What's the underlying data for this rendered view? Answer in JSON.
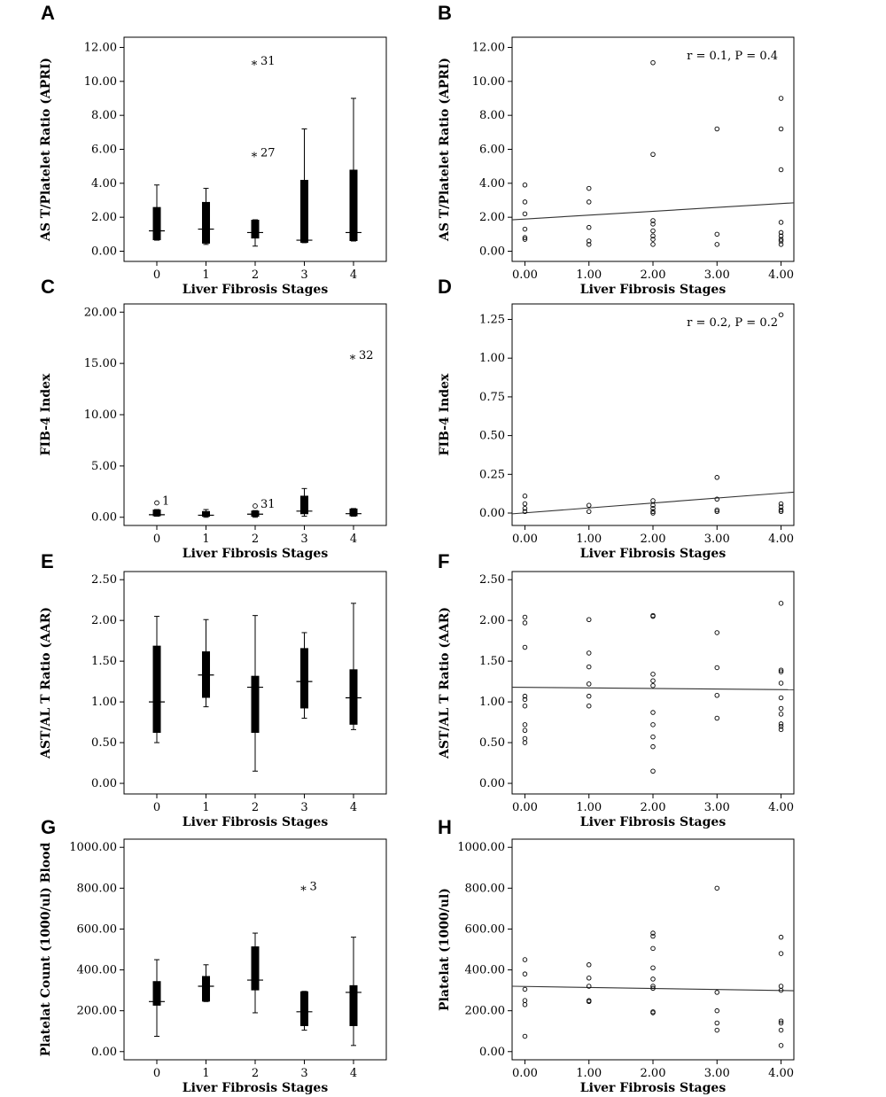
{
  "chart_data": [
    {
      "panel": "A",
      "type": "box",
      "ylabel": "AS T/Platelet Ratio (APRI)",
      "xlabel": "Liver Fibrosis Stages",
      "categories": [
        "0",
        "1",
        "2",
        "3",
        "4"
      ],
      "yticks": [
        "0.00",
        "2.00",
        "4.00",
        "6.00",
        "8.00",
        "10.00",
        "12.00"
      ],
      "ylim": [
        -0.6,
        12.6
      ],
      "boxes": [
        {
          "min": 0.65,
          "q1": 0.65,
          "median": 1.2,
          "q3": 2.6,
          "max": 3.9
        },
        {
          "min": 0.4,
          "q1": 0.45,
          "median": 1.3,
          "q3": 2.9,
          "max": 3.7
        },
        {
          "min": 0.3,
          "q1": 0.75,
          "median": 1.1,
          "q3": 1.85,
          "max": 1.85
        },
        {
          "min": 0.5,
          "q1": 0.5,
          "median": 0.65,
          "q3": 4.2,
          "max": 7.2
        },
        {
          "min": 0.6,
          "q1": 0.6,
          "median": 1.1,
          "q3": 4.8,
          "max": 9.0
        }
      ],
      "outliers": [
        {
          "cat": 2,
          "y": 11.1,
          "marker": "*",
          "label": "31"
        },
        {
          "cat": 2,
          "y": 5.7,
          "marker": "*",
          "label": "27"
        }
      ]
    },
    {
      "panel": "B",
      "type": "scatter",
      "ylabel": "AS T/Platelet Ratio (APRI)",
      "xlabel": "Liver Fibrosis Stages",
      "xticks": [
        "0.00",
        "1.00",
        "2.00",
        "3.00",
        "4.00"
      ],
      "yticks": [
        "0.00",
        "2.00",
        "4.00",
        "6.00",
        "8.00",
        "10.00",
        "12.00"
      ],
      "xlim": [
        -0.2,
        4.2
      ],
      "ylim": [
        -0.6,
        12.6
      ],
      "annotation": "r = 0.1, P = 0.4",
      "points": [
        [
          0,
          3.9
        ],
        [
          0,
          2.9
        ],
        [
          0,
          2.2
        ],
        [
          0,
          1.3
        ],
        [
          0,
          0.8
        ],
        [
          0,
          0.7
        ],
        [
          1,
          3.7
        ],
        [
          1,
          2.9
        ],
        [
          1,
          1.4
        ],
        [
          1,
          0.6
        ],
        [
          1,
          0.4
        ],
        [
          2,
          11.1
        ],
        [
          2,
          5.7
        ],
        [
          2,
          1.8
        ],
        [
          2,
          1.6
        ],
        [
          2,
          1.2
        ],
        [
          2,
          0.9
        ],
        [
          2,
          0.7
        ],
        [
          2,
          0.4
        ],
        [
          3,
          7.2
        ],
        [
          3,
          1.0
        ],
        [
          3,
          0.4
        ],
        [
          4,
          9.0
        ],
        [
          4,
          7.2
        ],
        [
          4,
          4.8
        ],
        [
          4,
          1.7
        ],
        [
          4,
          1.1
        ],
        [
          4,
          0.9
        ],
        [
          4,
          0.7
        ],
        [
          4,
          0.6
        ],
        [
          4,
          0.4
        ]
      ],
      "fit": {
        "x": [
          -0.2,
          4.2
        ],
        "y": [
          1.85,
          2.85
        ]
      }
    },
    {
      "panel": "C",
      "type": "box",
      "ylabel": "FIB-4 Index",
      "xlabel": "Liver Fibrosis Stages",
      "categories": [
        "0",
        "1",
        "2",
        "3",
        "4"
      ],
      "yticks": [
        "0.00",
        "5.00",
        "10.00",
        "15.00",
        "20.00"
      ],
      "ylim": [
        -0.8,
        20.8
      ],
      "boxes": [
        {
          "min": 0.1,
          "q1": 0.1,
          "median": 0.25,
          "q3": 0.75,
          "max": 0.75
        },
        {
          "min": 0.0,
          "q1": 0.05,
          "median": 0.2,
          "q3": 0.6,
          "max": 0.75
        },
        {
          "min": 0.0,
          "q1": 0.05,
          "median": 0.3,
          "q3": 0.65,
          "max": 0.65
        },
        {
          "min": 0.1,
          "q1": 0.3,
          "median": 0.6,
          "q3": 2.1,
          "max": 2.8
        },
        {
          "min": 0.1,
          "q1": 0.1,
          "median": 0.35,
          "q3": 0.85,
          "max": 0.85
        }
      ],
      "outliers": [
        {
          "cat": 0,
          "y": 1.4,
          "marker": "o",
          "label": "1"
        },
        {
          "cat": 2,
          "y": 1.1,
          "marker": "o",
          "label": "31"
        },
        {
          "cat": 4,
          "y": 15.6,
          "marker": "*",
          "label": "32"
        }
      ]
    },
    {
      "panel": "D",
      "type": "scatter",
      "ylabel": "FIB-4 Index",
      "xlabel": "Liver Fibrosis Stages",
      "xticks": [
        "0.00",
        "1.00",
        "2.00",
        "3.00",
        "4.00"
      ],
      "yticks": [
        "0.00",
        "0.25",
        "0.50",
        "0.75",
        "1.00",
        "1.25"
      ],
      "xlim": [
        -0.2,
        4.2
      ],
      "ylim": [
        -0.08,
        1.35
      ],
      "annotation": "r = 0.2, P = 0.2",
      "points": [
        [
          0,
          0.11
        ],
        [
          0,
          0.06
        ],
        [
          0,
          0.03
        ],
        [
          0,
          0.01
        ],
        [
          1,
          0.05
        ],
        [
          1,
          0.01
        ],
        [
          2,
          0.08
        ],
        [
          2,
          0.05
        ],
        [
          2,
          0.03
        ],
        [
          2,
          0.01
        ],
        [
          2,
          0.0
        ],
        [
          3,
          0.23
        ],
        [
          3,
          0.09
        ],
        [
          3,
          0.02
        ],
        [
          3,
          0.01
        ],
        [
          4,
          1.28
        ],
        [
          4,
          0.06
        ],
        [
          4,
          0.04
        ],
        [
          4,
          0.02
        ],
        [
          4,
          0.01
        ]
      ],
      "fit": {
        "x": [
          -0.2,
          4.2
        ],
        "y": [
          -0.005,
          0.135
        ]
      }
    },
    {
      "panel": "E",
      "type": "box",
      "ylabel": "AST/AL T Ratio (AAR)",
      "xlabel": "Liver Fibrosis Stages",
      "categories": [
        "0",
        "1",
        "2",
        "3",
        "4"
      ],
      "yticks": [
        "0.00",
        "0.50",
        "1.00",
        "1.50",
        "2.00",
        "2.50"
      ],
      "ylim": [
        -0.13,
        2.6
      ],
      "boxes": [
        {
          "min": 0.5,
          "q1": 0.62,
          "median": 1.0,
          "q3": 1.69,
          "max": 2.05
        },
        {
          "min": 0.94,
          "q1": 1.05,
          "median": 1.33,
          "q3": 1.62,
          "max": 2.01
        },
        {
          "min": 0.15,
          "q1": 0.62,
          "median": 1.18,
          "q3": 1.32,
          "max": 2.06
        },
        {
          "min": 0.8,
          "q1": 0.92,
          "median": 1.25,
          "q3": 1.66,
          "max": 1.85
        },
        {
          "min": 0.66,
          "q1": 0.72,
          "median": 1.05,
          "q3": 1.4,
          "max": 2.21
        }
      ],
      "outliers": []
    },
    {
      "panel": "F",
      "type": "scatter",
      "ylabel": "AST/AL T Ratio (AAR)",
      "xlabel": "Liver Fibrosis Stages",
      "xticks": [
        "0.00",
        "1.00",
        "2.00",
        "3.00",
        "4.00"
      ],
      "yticks": [
        "0.00",
        "0.50",
        "1.00",
        "1.50",
        "2.00",
        "2.50"
      ],
      "xlim": [
        -0.2,
        4.2
      ],
      "ylim": [
        -0.13,
        2.6
      ],
      "annotation": "",
      "points": [
        [
          0,
          2.04
        ],
        [
          0,
          1.97
        ],
        [
          0,
          1.67
        ],
        [
          0,
          1.07
        ],
        [
          0,
          1.03
        ],
        [
          0,
          0.95
        ],
        [
          0,
          0.72
        ],
        [
          0,
          0.65
        ],
        [
          0,
          0.55
        ],
        [
          0,
          0.5
        ],
        [
          1,
          2.01
        ],
        [
          1,
          1.6
        ],
        [
          1,
          1.43
        ],
        [
          1,
          1.22
        ],
        [
          1,
          1.07
        ],
        [
          1,
          0.95
        ],
        [
          2,
          2.06
        ],
        [
          2,
          2.05
        ],
        [
          2,
          1.34
        ],
        [
          2,
          1.26
        ],
        [
          2,
          1.2
        ],
        [
          2,
          0.87
        ],
        [
          2,
          0.72
        ],
        [
          2,
          0.57
        ],
        [
          2,
          0.45
        ],
        [
          2,
          0.15
        ],
        [
          3,
          1.85
        ],
        [
          3,
          1.42
        ],
        [
          3,
          1.08
        ],
        [
          3,
          0.8
        ],
        [
          4,
          2.21
        ],
        [
          4,
          1.39
        ],
        [
          4,
          1.37
        ],
        [
          4,
          1.23
        ],
        [
          4,
          1.05
        ],
        [
          4,
          0.92
        ],
        [
          4,
          0.85
        ],
        [
          4,
          0.73
        ],
        [
          4,
          0.7
        ],
        [
          4,
          0.66
        ]
      ],
      "fit": {
        "x": [
          -0.2,
          4.2
        ],
        "y": [
          1.18,
          1.15
        ]
      }
    },
    {
      "panel": "G",
      "type": "box",
      "ylabel": "Platelat Count (1000/ul) Blood",
      "xlabel": "Liver Fibrosis Stages",
      "categories": [
        "0",
        "1",
        "2",
        "3",
        "4"
      ],
      "yticks": [
        "0.00",
        "200.00",
        "400.00",
        "600.00",
        "800.00",
        "1000.00"
      ],
      "ylim": [
        -40,
        1040
      ],
      "boxes": [
        {
          "min": 75,
          "q1": 225,
          "median": 245,
          "q3": 345,
          "max": 450
        },
        {
          "min": 245,
          "q1": 245,
          "median": 320,
          "q3": 370,
          "max": 425
        },
        {
          "min": 190,
          "q1": 300,
          "median": 350,
          "q3": 515,
          "max": 580
        },
        {
          "min": 105,
          "q1": 125,
          "median": 195,
          "q3": 295,
          "max": 295
        },
        {
          "min": 30,
          "q1": 125,
          "median": 290,
          "q3": 325,
          "max": 560
        }
      ],
      "outliers": [
        {
          "cat": 3,
          "y": 800,
          "marker": "*",
          "label": "3"
        }
      ]
    },
    {
      "panel": "H",
      "type": "scatter",
      "ylabel": "Platelat (1000/ul)",
      "xlabel": "Liver Fibrosis Stages",
      "xticks": [
        "0.00",
        "1.00",
        "2.00",
        "3.00",
        "4.00"
      ],
      "yticks": [
        "0.00",
        "200.00",
        "400.00",
        "600.00",
        "800.00",
        "1000.00"
      ],
      "xlim": [
        -0.2,
        4.2
      ],
      "ylim": [
        -40,
        1040
      ],
      "annotation": "",
      "points": [
        [
          0,
          450
        ],
        [
          0,
          380
        ],
        [
          0,
          305
        ],
        [
          0,
          250
        ],
        [
          0,
          230
        ],
        [
          0,
          75
        ],
        [
          1,
          425
        ],
        [
          1,
          360
        ],
        [
          1,
          320
        ],
        [
          1,
          250
        ],
        [
          1,
          245
        ],
        [
          2,
          580
        ],
        [
          2,
          565
        ],
        [
          2,
          505
        ],
        [
          2,
          410
        ],
        [
          2,
          355
        ],
        [
          2,
          320
        ],
        [
          2,
          310
        ],
        [
          2,
          195
        ],
        [
          2,
          190
        ],
        [
          3,
          800
        ],
        [
          3,
          290
        ],
        [
          3,
          200
        ],
        [
          3,
          140
        ],
        [
          3,
          105
        ],
        [
          4,
          560
        ],
        [
          4,
          480
        ],
        [
          4,
          320
        ],
        [
          4,
          300
        ],
        [
          4,
          150
        ],
        [
          4,
          140
        ],
        [
          4,
          105
        ],
        [
          4,
          30
        ]
      ],
      "fit": {
        "x": [
          -0.2,
          4.2
        ],
        "y": [
          320,
          298
        ]
      }
    }
  ]
}
